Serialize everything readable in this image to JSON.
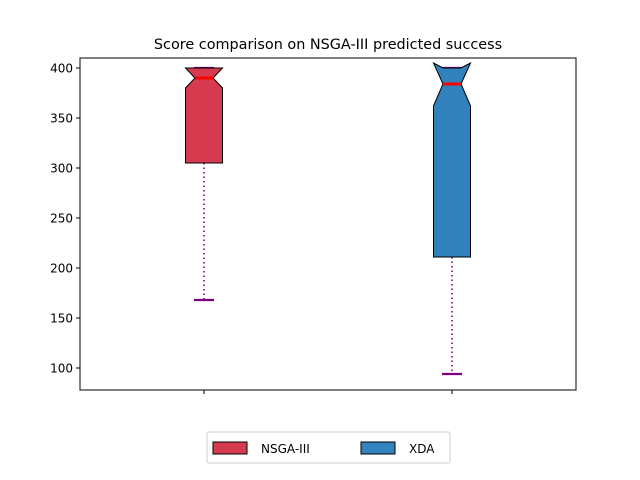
{
  "chart_data": {
    "type": "boxplot",
    "title": "Score comparison on NSGA-III predicted success",
    "xlabel": "",
    "ylabel": "",
    "categories": [
      "",
      ""
    ],
    "ylim": [
      78,
      410
    ],
    "yticks": [
      100,
      150,
      200,
      250,
      300,
      350,
      400
    ],
    "notched": true,
    "series": [
      {
        "name": "NSGA-III",
        "color": "#d63a4f",
        "whisker_low": 168,
        "q1": 305,
        "median": 390,
        "notch_low": 380,
        "notch_high": 400,
        "q3": 400,
        "whisker_high": 400
      },
      {
        "name": "XDA",
        "color": "#3182bd",
        "whisker_low": 94,
        "q1": 211,
        "median": 384,
        "notch_low": 362,
        "notch_high": 405,
        "q3": 400,
        "whisker_high": 400
      }
    ],
    "median_color": "#ff0000",
    "whisker_color": "#800080",
    "legend": {
      "placement": "bottom-center",
      "columns": 2
    },
    "grid": false
  }
}
